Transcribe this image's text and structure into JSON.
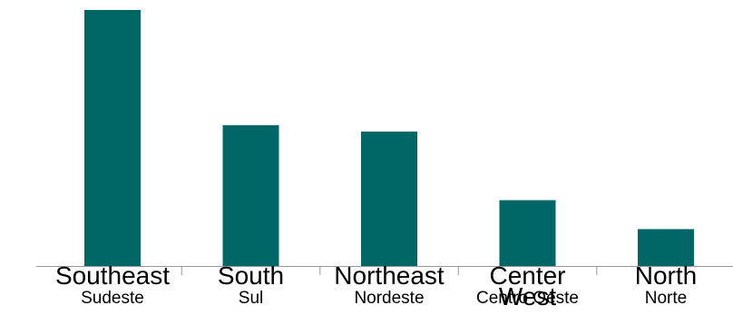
{
  "chart_data": {
    "type": "bar",
    "categories": [
      "Southeast",
      "South",
      "Northeast",
      "Center West",
      "North"
    ],
    "categories_en_lines": [
      [
        "Southeast"
      ],
      [
        "South"
      ],
      [
        "Northeast"
      ],
      [
        "Center",
        "West"
      ],
      [
        "North"
      ]
    ],
    "categories_pt": [
      "Sudeste",
      "Sul",
      "Nordeste",
      "Centro Oeste",
      "Norte"
    ],
    "values": [
      100,
      55,
      52.5,
      25.7,
      14.4
    ],
    "ylim": [
      0,
      100
    ],
    "grid": false,
    "bar_color": "#006666",
    "axis_color": "#999999"
  }
}
